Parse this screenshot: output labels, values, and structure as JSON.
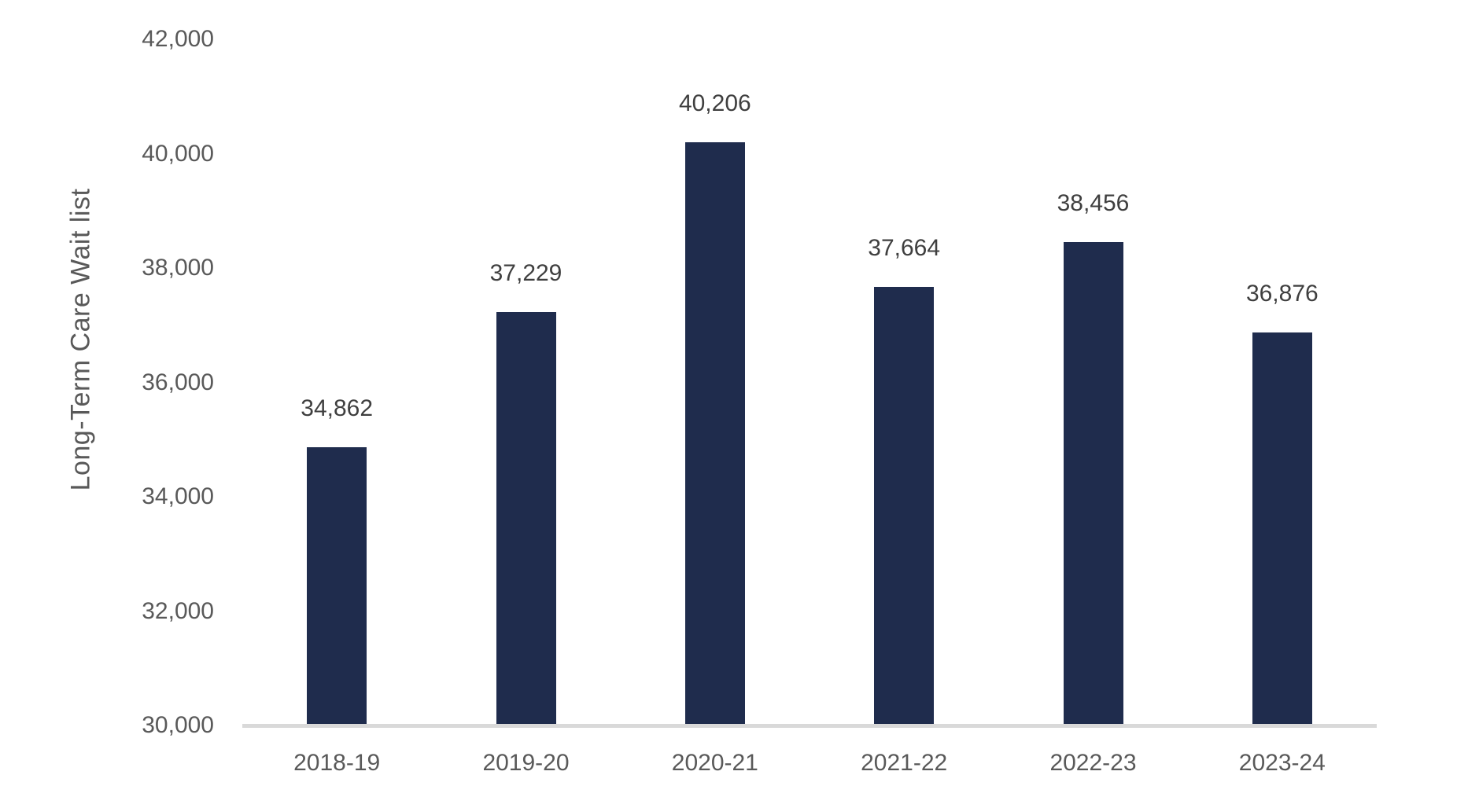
{
  "chart_data": {
    "type": "bar",
    "categories": [
      "2018-19",
      "2019-20",
      "2020-21",
      "2021-22",
      "2022-23",
      "2023-24"
    ],
    "values": [
      34862,
      37229,
      40206,
      37664,
      38456,
      36876
    ],
    "value_labels": [
      "34,862",
      "37,229",
      "40,206",
      "37,664",
      "38,456",
      "36,876"
    ],
    "xlabel": "",
    "ylabel": "Long-Term Care Wait list",
    "ylim": [
      30000,
      42000
    ],
    "ytick_interval": 2000,
    "ytick_labels": [
      "30,000",
      "32,000",
      "34,000",
      "36,000",
      "38,000",
      "40,000",
      "42,000"
    ],
    "grid": false,
    "legend": false,
    "colors": {
      "bar_fill": "#1F2C4D",
      "axis_line": "#D9D9D9",
      "axis_text": "#595959",
      "data_label_text": "#3F3F3F"
    }
  }
}
